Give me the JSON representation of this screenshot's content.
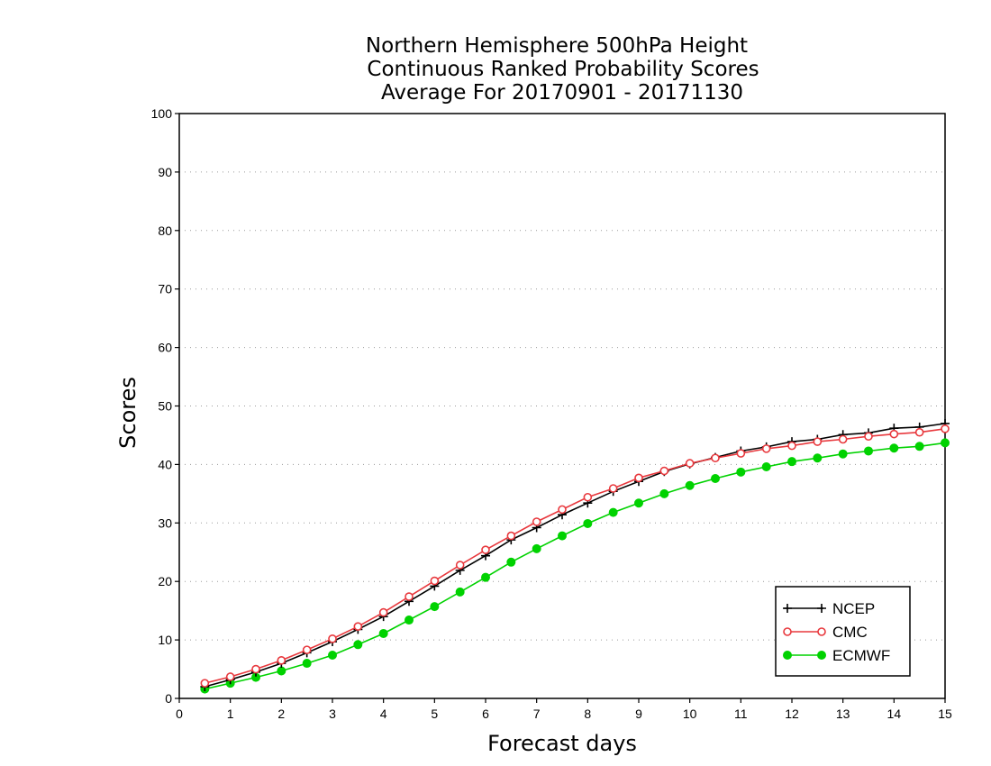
{
  "chart_data": {
    "type": "line",
    "title": [
      "Northern Hemisphere 500hPa Height",
      "Continuous Ranked Probability Scores",
      "Average For 20170901 - 20171130"
    ],
    "xlabel": "Forecast days",
    "ylabel": "Scores",
    "xlim": [
      0,
      15
    ],
    "ylim": [
      0,
      100
    ],
    "x_ticks": [
      0,
      1,
      2,
      3,
      4,
      5,
      6,
      7,
      8,
      9,
      10,
      11,
      12,
      13,
      14,
      15
    ],
    "y_ticks": [
      0,
      10,
      20,
      30,
      40,
      50,
      60,
      70,
      80,
      90,
      100
    ],
    "grid": "horizontal dotted",
    "legend_position": "bottom-right",
    "x": [
      0.5,
      1,
      1.5,
      2,
      2.5,
      3,
      3.5,
      4,
      4.5,
      5,
      5.5,
      6,
      6.5,
      7,
      7.5,
      8,
      8.5,
      9,
      9.5,
      10,
      10.5,
      11,
      11.5,
      12,
      12.5,
      13,
      13.5,
      14,
      14.5,
      15
    ],
    "series": [
      {
        "name": "NCEP",
        "color": "#000000",
        "marker": "plus",
        "values": [
          2.0,
          3.2,
          4.5,
          6.0,
          7.8,
          9.7,
          11.8,
          14.0,
          16.6,
          19.2,
          21.9,
          24.4,
          27.1,
          29.2,
          31.4,
          33.4,
          35.4,
          37.1,
          38.8,
          40.1,
          41.2,
          42.3,
          43.0,
          43.9,
          44.3,
          45.1,
          45.4,
          46.2,
          46.4,
          47.0
        ]
      },
      {
        "name": "CMC",
        "color": "#e8383d",
        "marker": "open-circle",
        "values": [
          2.6,
          3.7,
          5.0,
          6.5,
          8.3,
          10.2,
          12.3,
          14.7,
          17.4,
          20.1,
          22.8,
          25.4,
          27.8,
          30.2,
          32.3,
          34.4,
          35.9,
          37.7,
          38.9,
          40.2,
          41.1,
          41.9,
          42.7,
          43.2,
          43.9,
          44.3,
          44.8,
          45.2,
          45.5,
          46.1
        ]
      },
      {
        "name": "ECMWF",
        "color": "#00d200",
        "marker": "filled-circle",
        "values": [
          1.6,
          2.6,
          3.6,
          4.7,
          6.0,
          7.4,
          9.2,
          11.1,
          13.4,
          15.7,
          18.2,
          20.7,
          23.3,
          25.6,
          27.8,
          29.9,
          31.8,
          33.4,
          35.0,
          36.4,
          37.6,
          38.7,
          39.6,
          40.5,
          41.1,
          41.8,
          42.3,
          42.8,
          43.1,
          43.7
        ]
      }
    ]
  }
}
